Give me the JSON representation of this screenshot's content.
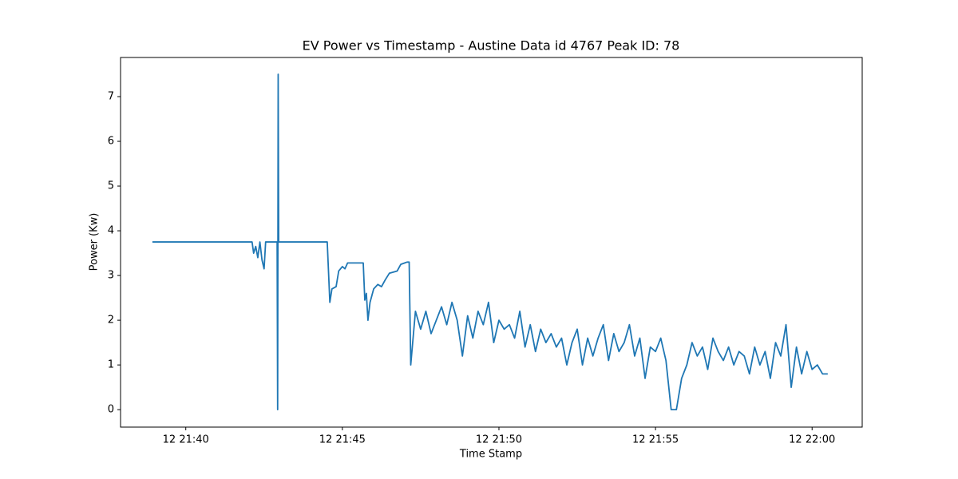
{
  "chart_data": {
    "type": "line",
    "title": "EV Power vs Timestamp - Austine Data id 4767 Peak ID: 78",
    "xlabel": "Time Stamp",
    "ylabel": "Power (Kw)",
    "color": "#1f77b4",
    "xlim": [
      "12 21:37:55",
      "12 22:01:36"
    ],
    "xticks": [
      "12 21:40",
      "12 21:45",
      "12 21:50",
      "12 21:55",
      "12 22:00"
    ],
    "ylim": [
      -0.39,
      7.875
    ],
    "yticks": [
      0,
      1,
      2,
      3,
      4,
      5,
      6,
      7
    ],
    "x": [
      "12 21:38:56",
      "12 21:42:07",
      "12 21:42:10",
      "12 21:42:14",
      "12 21:42:18",
      "12 21:42:22",
      "12 21:42:26",
      "12 21:42:30",
      "12 21:42:33",
      "12 21:42:55",
      "12 21:42:56",
      "12 21:42:57",
      "12 21:42:58",
      "12 21:44:31",
      "12 21:44:36",
      "12 21:44:40",
      "12 21:44:48",
      "12 21:44:53",
      "12 21:45:00",
      "12 21:45:05",
      "12 21:45:10",
      "12 21:45:40",
      "12 21:45:43",
      "12 21:45:46",
      "12 21:45:49",
      "12 21:45:53",
      "12 21:46:00",
      "12 21:46:08",
      "12 21:46:15",
      "12 21:46:22",
      "12 21:46:30",
      "12 21:46:45",
      "12 21:46:52",
      "12 21:47:04",
      "12 21:47:08",
      "12 21:47:11",
      "12 21:47:14",
      "12 21:47:20",
      "12 21:47:30",
      "12 21:47:40",
      "12 21:47:50",
      "12 21:48:00",
      "12 21:48:10",
      "12 21:48:20",
      "12 21:48:30",
      "12 21:48:40",
      "12 21:48:50",
      "12 21:49:00",
      "12 21:49:10",
      "12 21:49:20",
      "12 21:49:30",
      "12 21:49:40",
      "12 21:49:50",
      "12 21:50:00",
      "12 21:50:10",
      "12 21:50:20",
      "12 21:50:30",
      "12 21:50:40",
      "12 21:50:50",
      "12 21:51:00",
      "12 21:51:10",
      "12 21:51:20",
      "12 21:51:30",
      "12 21:51:40",
      "12 21:51:50",
      "12 21:52:00",
      "12 21:52:10",
      "12 21:52:20",
      "12 21:52:30",
      "12 21:52:40",
      "12 21:52:50",
      "12 21:53:00",
      "12 21:53:10",
      "12 21:53:20",
      "12 21:53:30",
      "12 21:53:40",
      "12 21:53:50",
      "12 21:54:00",
      "12 21:54:10",
      "12 21:54:20",
      "12 21:54:30",
      "12 21:54:40",
      "12 21:54:50",
      "12 21:55:00",
      "12 21:55:10",
      "12 21:55:20",
      "12 21:55:30",
      "12 21:55:40",
      "12 21:55:50",
      "12 21:56:00",
      "12 21:56:10",
      "12 21:56:20",
      "12 21:56:30",
      "12 21:56:40",
      "12 21:56:50",
      "12 21:57:00",
      "12 21:57:10",
      "12 21:57:20",
      "12 21:57:30",
      "12 21:57:40",
      "12 21:57:50",
      "12 21:58:00",
      "12 21:58:10",
      "12 21:58:20",
      "12 21:58:30",
      "12 21:58:40",
      "12 21:58:50",
      "12 21:59:00",
      "12 21:59:10",
      "12 21:59:20",
      "12 21:59:30",
      "12 21:59:40",
      "12 21:59:50",
      "12 22:00:00",
      "12 22:00:10",
      "12 22:00:20",
      "12 22:00:30"
    ],
    "values": [
      3.75,
      3.75,
      3.5,
      3.65,
      3.4,
      3.75,
      3.35,
      3.15,
      3.75,
      3.75,
      0,
      7.5,
      3.75,
      3.75,
      2.4,
      2.7,
      2.75,
      3.1,
      3.2,
      3.15,
      3.28,
      3.28,
      2.45,
      2.6,
      2.0,
      2.4,
      2.7,
      2.8,
      2.75,
      2.9,
      3.05,
      3.1,
      3.25,
      3.3,
      3.3,
      1.0,
      1.4,
      2.2,
      1.8,
      2.2,
      1.7,
      2.0,
      2.3,
      1.9,
      2.4,
      2.0,
      1.2,
      2.1,
      1.6,
      2.2,
      1.9,
      2.4,
      1.5,
      2.0,
      1.8,
      1.9,
      1.6,
      2.2,
      1.4,
      1.9,
      1.3,
      1.8,
      1.5,
      1.7,
      1.4,
      1.6,
      1.0,
      1.5,
      1.8,
      1.0,
      1.6,
      1.2,
      1.6,
      1.9,
      1.1,
      1.7,
      1.3,
      1.5,
      1.9,
      1.2,
      1.6,
      0.7,
      1.4,
      1.3,
      1.6,
      1.1,
      0.0,
      0.0,
      0.7,
      1.0,
      1.5,
      1.2,
      1.4,
      0.9,
      1.6,
      1.3,
      1.1,
      1.4,
      1.0,
      1.3,
      1.2,
      0.8,
      1.4,
      1.0,
      1.3,
      0.7,
      1.5,
      1.2,
      1.9,
      0.5,
      1.4,
      0.8,
      1.3,
      0.9,
      1.0,
      0.8,
      0.8
    ]
  }
}
